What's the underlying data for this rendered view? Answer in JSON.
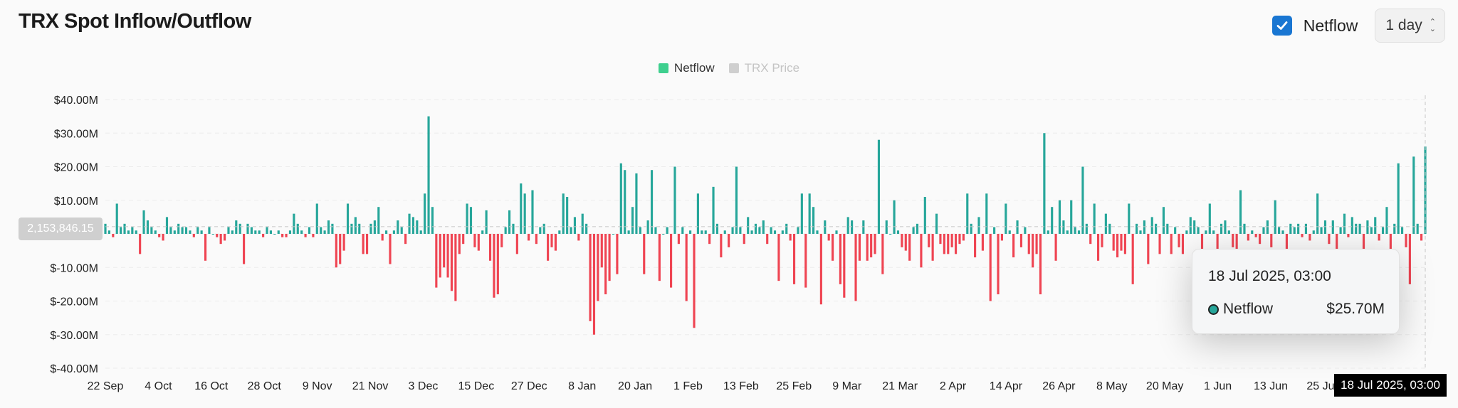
{
  "header": {
    "title": "TRX Spot Inflow/Outflow"
  },
  "controls": {
    "checkbox_label": "Netflow",
    "checked": true,
    "interval": "1 day"
  },
  "tooltip": {
    "date": "18 Jul 2025, 03:00",
    "series": "Netflow",
    "value": "$25.70M"
  },
  "crosshair": {
    "y_label": "2,153,846.15",
    "x_label": "18 Jul 2025, 03:00"
  },
  "colors": {
    "positive": "#26a69a",
    "negative": "#ef4452",
    "legend_netflow": "#3ecf8e",
    "legend_price": "#cfcfcf"
  },
  "chart_data": {
    "type": "bar",
    "legend": [
      {
        "name": "Netflow",
        "active": true
      },
      {
        "name": "TRX Price",
        "active": false
      }
    ],
    "y_ticks": [
      "$40.00M",
      "$30.00M",
      "$20.00M",
      "$10.00M",
      "$0.00",
      "$-10.00M",
      "$-20.00M",
      "$-30.00M",
      "$-40.00M"
    ],
    "ylim": [
      -40,
      40
    ],
    "y_unit": "$M",
    "x_ticks": [
      "22 Sep",
      "4 Oct",
      "16 Oct",
      "28 Oct",
      "9 Nov",
      "21 Nov",
      "3 Dec",
      "15 Dec",
      "27 Dec",
      "8 Jan",
      "20 Jan",
      "1 Feb",
      "13 Feb",
      "25 Feb",
      "9 Mar",
      "21 Mar",
      "2 Apr",
      "14 Apr",
      "26 Apr",
      "8 May",
      "20 May",
      "1 Jun",
      "13 Jun",
      "25 Jun"
    ],
    "start_date": "2024-09-22",
    "end_date": "2025-07-18",
    "values": [
      3,
      1,
      -1,
      9,
      2,
      3,
      1,
      2,
      1,
      -6,
      7,
      4,
      2,
      1,
      -1,
      -2,
      5,
      2,
      1,
      3,
      2,
      2,
      1,
      -1,
      2,
      1,
      -8,
      2,
      0,
      -1,
      -3,
      -2,
      2,
      1,
      4,
      3,
      -9,
      3,
      2,
      1,
      1,
      -1,
      2,
      1,
      0,
      1,
      -1,
      -1,
      1,
      6,
      3,
      1,
      -1,
      2,
      -1,
      9,
      2,
      1,
      4,
      3,
      -10,
      -9,
      -5,
      9,
      3,
      5,
      3,
      -6,
      -6,
      3,
      4,
      8,
      -2,
      1,
      -9,
      1,
      4,
      2,
      -3,
      6,
      5,
      4,
      1,
      12,
      35,
      8,
      -16,
      -13,
      -10,
      -13,
      -17,
      -20,
      -6,
      -3,
      9,
      8,
      -4,
      -5,
      1,
      7,
      -8,
      -19,
      -18,
      -4,
      2,
      7,
      3,
      -6,
      15,
      12,
      -2,
      13,
      -3,
      2,
      3,
      -8,
      -4,
      -5,
      1,
      12,
      11,
      2,
      5,
      -2,
      6,
      3,
      -26,
      -30,
      -20,
      -10,
      -18,
      -14,
      0,
      -12,
      21,
      19,
      1,
      8,
      18,
      2,
      -12,
      4,
      19,
      2,
      -14,
      0,
      2,
      -16,
      20,
      -3,
      2,
      -20,
      1,
      -28,
      12,
      1,
      1,
      -3,
      14,
      3,
      -7,
      1,
      -4,
      2,
      20,
      2,
      -3,
      5,
      1,
      3,
      2,
      4,
      -3,
      2,
      1,
      -14,
      1,
      3,
      -2,
      -15,
      2,
      12,
      -16,
      12,
      8,
      1,
      -21,
      4,
      -2,
      -8,
      1,
      -15,
      -19,
      5,
      4,
      -20,
      -8,
      4,
      -8,
      -7,
      -6,
      28,
      -12,
      4,
      0,
      10,
      1,
      -4,
      -5,
      -8,
      2,
      3,
      -10,
      11,
      -4,
      -8,
      6,
      -3,
      -6,
      -6,
      -4,
      -6,
      -3,
      -2,
      12,
      3,
      -7,
      5,
      -5,
      12,
      -20,
      2,
      -18,
      -2,
      9,
      1,
      -7,
      4,
      -4,
      2,
      -6,
      -10,
      -6,
      -18,
      30,
      1,
      8,
      -8,
      10,
      4,
      1,
      10,
      2,
      1,
      20,
      3,
      -3,
      9,
      -8,
      -4,
      6,
      3,
      -5,
      -7,
      -5,
      -6,
      9,
      -15,
      3,
      1,
      4,
      -9,
      5,
      3,
      -6,
      8,
      3,
      -6,
      2,
      -4,
      -6,
      1,
      5,
      4,
      2,
      -5,
      1,
      9,
      1,
      -5,
      3,
      4,
      1,
      -4,
      -7,
      13,
      3,
      -2,
      1,
      -1,
      -3,
      2,
      4,
      -4,
      10,
      2,
      1,
      -6,
      3,
      2,
      3,
      -1,
      3,
      -2,
      1,
      12,
      2,
      4,
      -3,
      4,
      -5,
      2,
      6,
      -1,
      5,
      3,
      3,
      -7,
      4,
      2,
      5,
      -2,
      2,
      8,
      -5,
      3,
      21,
      2,
      -4,
      -15,
      23,
      3,
      -2,
      26
    ]
  }
}
